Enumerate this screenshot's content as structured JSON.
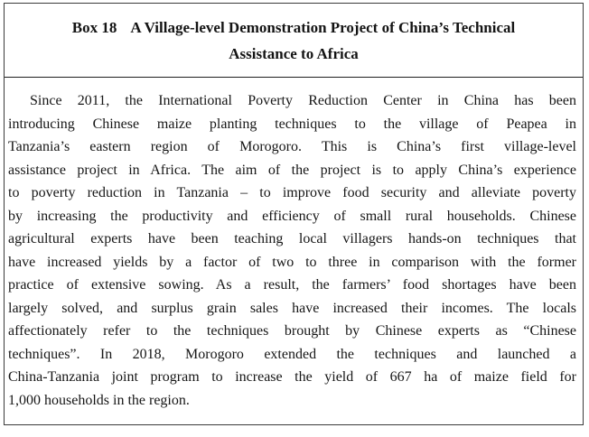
{
  "box": {
    "label": "Box 18",
    "title_line1": "A Village-level Demonstration Project of China’s Technical",
    "title_line2": "Assistance to Africa"
  },
  "body": {
    "lines": [
      "Since 2011, the International Poverty Reduction Center in China has been",
      "introducing Chinese maize planting techniques to the village of Peapea in",
      "Tanzania’s eastern region of Morogoro. This is China’s first village-level",
      "assistance project in Africa. The aim of the project is to apply China’s experience",
      "to poverty reduction in Tanzania – to improve food security and alleviate poverty",
      "by increasing the productivity and efficiency of small rural households. Chinese",
      "agricultural experts have been teaching local villagers hands-on techniques that",
      "have increased yields by a factor of two to three in comparison with the former",
      "practice of extensive sowing. As a result, the farmers’ food shortages have been",
      "largely solved, and surplus grain sales have increased their incomes. The locals",
      "affectionately refer to the techniques brought by Chinese experts as “Chinese",
      "techniques”. In 2018, Morogoro extended the techniques and launched a",
      "China-Tanzania joint program to increase the yield of 667 ha of maize field for",
      "1,000 households in the region."
    ]
  }
}
